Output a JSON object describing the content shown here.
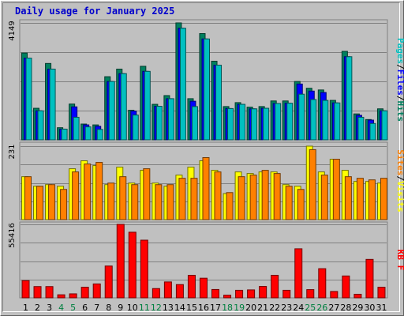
{
  "chart_data": {
    "type": "bar",
    "title": "Daily usage for January 2025",
    "categories": [
      "1",
      "2",
      "3",
      "4",
      "5",
      "6",
      "7",
      "8",
      "9",
      "10",
      "11",
      "12",
      "13",
      "14",
      "15",
      "16",
      "17",
      "18",
      "19",
      "20",
      "21",
      "22",
      "23",
      "24",
      "25",
      "26",
      "27",
      "28",
      "29",
      "30",
      "31"
    ],
    "weekend_days": [
      "4",
      "5",
      "11",
      "12",
      "18",
      "19",
      "25",
      "26"
    ],
    "grid": true,
    "panels": [
      {
        "id": "hits-files-pages",
        "ymax": 4149,
        "ymax_label": "4149",
        "legend": [
          {
            "label": "Pages",
            "color": "#00c0c0"
          },
          {
            "label": "Files",
            "color": "#0000ff"
          },
          {
            "label": "Hits",
            "color": "#00805f"
          }
        ],
        "series": [
          {
            "name": "Hits",
            "color": "#00805f",
            "values": [
              3080,
              1120,
              2710,
              430,
              1270,
              560,
              530,
              2240,
              2510,
              1050,
              2610,
              1260,
              1570,
              4149,
              1460,
              3770,
              2790,
              1180,
              1320,
              1160,
              1180,
              1380,
              1380,
              2070,
              1830,
              1770,
              1400,
              3140,
              920,
              720,
              1100
            ]
          },
          {
            "name": "Files",
            "color": "#0000ff",
            "values": [
              2900,
              1030,
              2510,
              380,
              1170,
              530,
              480,
              2070,
              2350,
              1020,
              2430,
              1190,
              1460,
              3960,
              1370,
              3580,
              2650,
              1110,
              1260,
              1100,
              1120,
              1290,
              1300,
              1980,
              1730,
              1680,
              1310,
              2950,
              870,
              700,
              1030
            ]
          },
          {
            "name": "Pages",
            "color": "#00c0c0",
            "values": [
              2900,
              1030,
              2510,
              380,
              800,
              460,
              370,
              2070,
              2350,
              880,
              2430,
              1190,
              1460,
              3960,
              1180,
              3580,
              2650,
              1110,
              1260,
              1100,
              1120,
              1290,
              1300,
              1620,
              1430,
              1400,
              1310,
              2950,
              800,
              580,
              1030
            ]
          }
        ]
      },
      {
        "id": "visits-sites",
        "ymax": 231,
        "ymax_label": "231",
        "legend": [
          {
            "label": "Sites",
            "color": "#ff8000"
          },
          {
            "label": "Visits",
            "color": "#ffff00"
          }
        ],
        "series": [
          {
            "name": "Visits",
            "color": "#ffff00",
            "values": [
              135,
              105,
              110,
              105,
              160,
              185,
              170,
              110,
              165,
              115,
              155,
              115,
              105,
              140,
              165,
              185,
              155,
              82,
              150,
              145,
              150,
              150,
              110,
              105,
              231,
              150,
              190,
              155,
              120,
              120,
              115
            ]
          },
          {
            "name": "Sites",
            "color": "#ff8000",
            "values": [
              135,
              105,
              110,
              95,
              150,
              175,
              180,
              115,
              135,
              110,
              160,
              110,
              110,
              130,
              130,
              195,
              150,
              85,
              135,
              140,
              155,
              145,
              105,
              95,
              220,
              140,
              190,
              135,
              130,
              125,
              130
            ]
          }
        ]
      },
      {
        "id": "kbytes",
        "ymax": 55416,
        "ymax_label": "55416",
        "legend": [
          {
            "label": "KB F",
            "color": "#ff0000"
          }
        ],
        "series": [
          {
            "name": "KB F",
            "color": "#ff0000",
            "values": [
              13000,
              8500,
              8500,
              2300,
              3000,
              8000,
              10500,
              24000,
              55416,
              49500,
              43500,
              7000,
              12000,
              10000,
              17000,
              14800,
              6300,
              2000,
              5700,
              6000,
              8600,
              17000,
              5700,
              37000,
              6200,
              22000,
              4800,
              16500,
              2700,
              29000,
              8000
            ]
          }
        ]
      }
    ]
  }
}
